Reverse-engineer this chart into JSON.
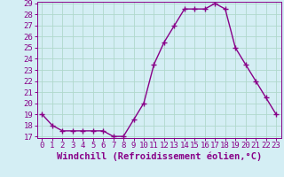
{
  "x": [
    0,
    1,
    2,
    3,
    4,
    5,
    6,
    7,
    8,
    9,
    10,
    11,
    12,
    13,
    14,
    15,
    16,
    17,
    18,
    19,
    20,
    21,
    22,
    23
  ],
  "y": [
    19,
    18,
    17.5,
    17.5,
    17.5,
    17.5,
    17.5,
    17,
    17,
    18.5,
    20,
    23.5,
    25.5,
    27,
    28.5,
    28.5,
    28.5,
    29,
    28.5,
    25,
    23.5,
    22,
    20.5,
    19
  ],
  "line_color": "#880088",
  "marker_color": "#880088",
  "bg_color": "#d4eef4",
  "grid_color": "#b0d8cc",
  "xlabel": "Windchill (Refroidissement éolien,°C)",
  "ylabel": "",
  "ylim": [
    17,
    29
  ],
  "xlim": [
    -0.5,
    23.5
  ],
  "yticks": [
    17,
    18,
    19,
    20,
    21,
    22,
    23,
    24,
    25,
    26,
    27,
    28,
    29
  ],
  "xticks": [
    0,
    1,
    2,
    3,
    4,
    5,
    6,
    7,
    8,
    9,
    10,
    11,
    12,
    13,
    14,
    15,
    16,
    17,
    18,
    19,
    20,
    21,
    22,
    23
  ],
  "line_width": 1.0,
  "marker_size": 4,
  "xlabel_fontsize": 7.5,
  "tick_fontsize": 6.5
}
